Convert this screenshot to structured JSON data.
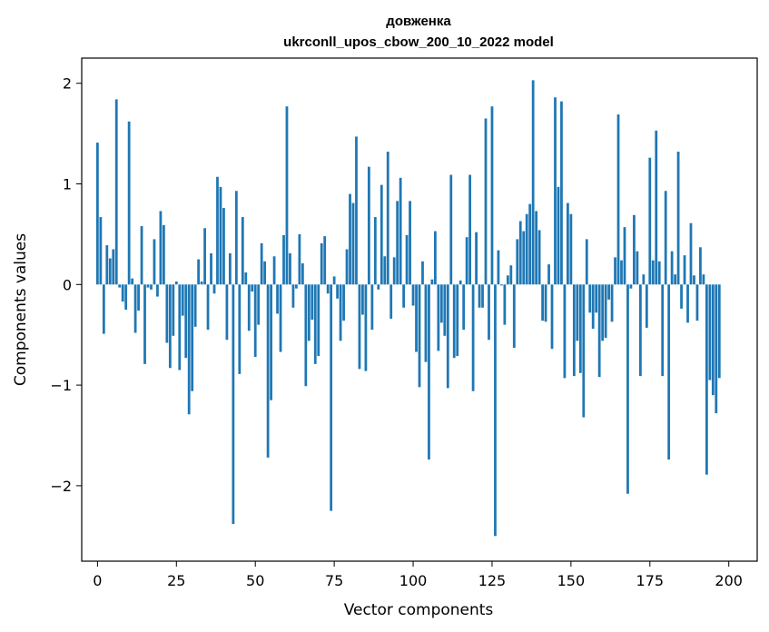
{
  "chart_data": {
    "type": "bar",
    "title": "довженка",
    "subtitle": "ukrconll_upos_cbow_200_10_2022 model",
    "xlabel": "Vector components",
    "ylabel": "Components values",
    "xlim": [
      -5,
      209
    ],
    "ylim": [
      -2.75,
      2.25
    ],
    "xticks": [
      0,
      25,
      50,
      75,
      100,
      125,
      150,
      175,
      200
    ],
    "xtick_labels": [
      "0",
      "25",
      "50",
      "75",
      "100",
      "125",
      "150",
      "175",
      "200"
    ],
    "yticks": [
      -2,
      -1,
      0,
      1,
      2
    ],
    "ytick_labels": [
      "−2",
      "−1",
      "0",
      "1",
      "2"
    ],
    "grid": false,
    "bar_color": "#1f77b4",
    "values": [
      1.41,
      0.67,
      -0.49,
      0.39,
      0.26,
      0.35,
      1.84,
      -0.03,
      -0.17,
      -0.25,
      1.62,
      0.06,
      -0.48,
      -0.26,
      0.58,
      -0.79,
      -0.03,
      -0.05,
      0.45,
      -0.12,
      0.73,
      0.59,
      -0.58,
      -0.83,
      -0.51,
      0.03,
      -0.85,
      -0.31,
      -0.73,
      -1.29,
      -1.06,
      -0.42,
      0.25,
      0.03,
      0.56,
      -0.45,
      0.31,
      -0.09,
      1.07,
      0.97,
      0.76,
      -0.55,
      0.31,
      -2.38,
      0.93,
      -0.89,
      0.67,
      0.12,
      -0.46,
      -0.07,
      -0.72,
      -0.4,
      0.41,
      0.23,
      -1.72,
      -1.15,
      0.28,
      -0.29,
      -0.67,
      0.49,
      1.77,
      0.31,
      -0.23,
      -0.04,
      0.5,
      0.21,
      -1.01,
      -0.56,
      -0.35,
      -0.79,
      -0.71,
      0.41,
      0.48,
      -0.09,
      -2.25,
      0.08,
      -0.14,
      -0.56,
      -0.36,
      0.35,
      0.9,
      0.81,
      1.47,
      -0.84,
      -0.3,
      -0.86,
      1.17,
      -0.45,
      0.67,
      -0.05,
      0.99,
      0.28,
      1.32,
      -0.34,
      0.27,
      0.83,
      1.06,
      -0.23,
      0.49,
      0.83,
      -0.21,
      -0.67,
      -1.02,
      0.23,
      -0.77,
      -1.74,
      0.05,
      0.53,
      -0.66,
      -0.38,
      -0.51,
      -1.03,
      1.09,
      -0.73,
      -0.71,
      0.04,
      -0.45,
      0.47,
      1.09,
      -1.06,
      0.52,
      -0.23,
      -0.23,
      1.65,
      -0.55,
      1.77,
      -2.5,
      0.34,
      -0.01,
      -0.4,
      0.09,
      0.19,
      -0.63,
      0.45,
      0.63,
      0.53,
      0.7,
      0.8,
      2.03,
      0.73,
      0.54,
      -0.36,
      -0.37,
      0.2,
      -0.64,
      1.86,
      0.97,
      1.82,
      -0.93,
      0.81,
      0.7,
      -0.91,
      -0.56,
      -0.88,
      -1.32,
      0.45,
      -0.28,
      -0.44,
      -0.28,
      -0.92,
      -0.56,
      -0.53,
      -0.15,
      -0.37,
      0.27,
      1.69,
      0.24,
      0.57,
      -2.08,
      -0.04,
      0.69,
      0.33,
      -0.91,
      0.1,
      -0.43,
      1.26,
      0.24,
      1.53,
      0.23,
      -0.91,
      0.93,
      -1.74,
      0.33,
      0.1,
      1.32,
      -0.24,
      0.29,
      -0.38,
      0.61,
      0.09,
      -0.36,
      0.37,
      0.1,
      -1.89,
      -0.95,
      -1.1,
      -1.28,
      -0.93
    ]
  }
}
